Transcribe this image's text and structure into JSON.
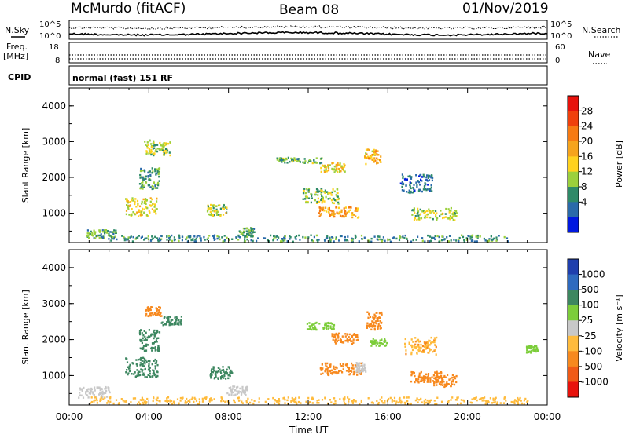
{
  "header": {
    "station": "McMurdo (fitACF)",
    "beam": "Beam 08",
    "date": "01/Nov/2019"
  },
  "strips": {
    "nsky_label": "N.Sky",
    "nsearch_label": "N.Search",
    "noise_ticks": [
      "10^5",
      "10^0"
    ],
    "freq_label_1": "Freq.",
    "freq_label_2": "[MHz]",
    "freq_ticks": [
      "18",
      "8"
    ],
    "nave_label": "Nave",
    "nave_ticks": [
      "60",
      "0"
    ],
    "cpid_label": "CPID",
    "cpid_text": "normal (fast) 151 RF"
  },
  "colorbars": {
    "power": {
      "label": "Power [dB]",
      "ticks": [
        "28",
        "24",
        "20",
        "16",
        "12",
        "8",
        "4"
      ],
      "colors": [
        "#e8120c",
        "#f0400c",
        "#f77a12",
        "#f6a41c",
        "#ffd21e",
        "#9bd03c",
        "#2e8a68",
        "#2a6aaa",
        "#0018e0"
      ]
    },
    "velocity": {
      "label": "Velocity [m s⁻¹]",
      "ticks": [
        "1000",
        "500",
        "100",
        "25",
        "-25",
        "-100",
        "-500",
        "-1000"
      ],
      "colors": [
        "#1f3fae",
        "#2e6abf",
        "#3d8760",
        "#7ccd3a",
        "#c8c8c8",
        "#ffbb3c",
        "#f7891e",
        "#f05a16",
        "#e8120c"
      ]
    }
  },
  "chart_data": [
    {
      "type": "heatmap",
      "quantity": "Power",
      "ylabel": "Slant Range [km]",
      "xlabel": "Time UT",
      "x_ticks": [
        "00:00",
        "04:00",
        "08:00",
        "12:00",
        "16:00",
        "20:00",
        "00:00"
      ],
      "y_ticks": [
        "1000",
        "2000",
        "3000",
        "4000"
      ],
      "xlim_hours": [
        0,
        24
      ],
      "ylim_km": [
        180,
        4500
      ],
      "units": "dB",
      "clim": [
        0,
        30
      ],
      "regions": [
        {
          "t": 1.6,
          "r": 440,
          "dt": 1.5,
          "dr": 260,
          "v": 10
        },
        {
          "t": 3.6,
          "r": 1200,
          "dt": 1.6,
          "dr": 520,
          "v": 14
        },
        {
          "t": 4.0,
          "r": 2000,
          "dt": 1.0,
          "dr": 600,
          "v": 9
        },
        {
          "t": 4.4,
          "r": 2850,
          "dt": 1.3,
          "dr": 420,
          "v": 12
        },
        {
          "t": 7.4,
          "r": 1100,
          "dt": 1.0,
          "dr": 320,
          "v": 13
        },
        {
          "t": 8.9,
          "r": 500,
          "dt": 0.8,
          "dr": 260,
          "v": 9
        },
        {
          "t": 11.5,
          "r": 2500,
          "dt": 2.3,
          "dr": 160,
          "v": 10
        },
        {
          "t": 13.2,
          "r": 2300,
          "dt": 1.2,
          "dr": 260,
          "v": 15
        },
        {
          "t": 12.6,
          "r": 1500,
          "dt": 1.8,
          "dr": 420,
          "v": 11
        },
        {
          "t": 13.5,
          "r": 1050,
          "dt": 2.0,
          "dr": 300,
          "v": 18
        },
        {
          "t": 15.2,
          "r": 2600,
          "dt": 0.8,
          "dr": 420,
          "v": 17
        },
        {
          "t": 18.3,
          "r": 1000,
          "dt": 2.3,
          "dr": 340,
          "v": 13
        },
        {
          "t": 17.4,
          "r": 1850,
          "dt": 1.6,
          "dr": 520,
          "v": 6
        },
        {
          "t": 12.0,
          "r": 320,
          "dt": 20,
          "dr": 180,
          "v": 8
        }
      ]
    },
    {
      "type": "heatmap",
      "quantity": "Velocity",
      "ylabel": "Slant Range [km]",
      "xlabel": "Time UT",
      "x_ticks": [
        "00:00",
        "04:00",
        "08:00",
        "12:00",
        "16:00",
        "20:00",
        "00:00"
      ],
      "y_ticks": [
        "1000",
        "2000",
        "3000",
        "4000"
      ],
      "xlim_hours": [
        0,
        24
      ],
      "ylim_km": [
        180,
        4500
      ],
      "units": "m s^-1",
      "regions": [
        {
          "t": 1.2,
          "r": 560,
          "dt": 1.6,
          "dr": 300,
          "v": 0
        },
        {
          "t": 3.6,
          "r": 1250,
          "dt": 1.6,
          "dr": 540,
          "v": 150
        },
        {
          "t": 4.0,
          "r": 2000,
          "dt": 1.0,
          "dr": 600,
          "v": 140
        },
        {
          "t": 4.2,
          "r": 2800,
          "dt": 0.8,
          "dr": 260,
          "v": -150
        },
        {
          "t": 5.1,
          "r": 2550,
          "dt": 1.0,
          "dr": 240,
          "v": 160
        },
        {
          "t": 7.6,
          "r": 1100,
          "dt": 1.1,
          "dr": 340,
          "v": 160
        },
        {
          "t": 8.4,
          "r": 600,
          "dt": 1.0,
          "dr": 260,
          "v": 10
        },
        {
          "t": 12.6,
          "r": 2400,
          "dt": 1.4,
          "dr": 200,
          "v": 70
        },
        {
          "t": 13.8,
          "r": 2050,
          "dt": 1.3,
          "dr": 300,
          "v": -140
        },
        {
          "t": 13.6,
          "r": 1200,
          "dt": 2.1,
          "dr": 340,
          "v": -250
        },
        {
          "t": 14.6,
          "r": 1250,
          "dt": 0.5,
          "dr": 280,
          "v": 5
        },
        {
          "t": 15.3,
          "r": 2550,
          "dt": 0.8,
          "dr": 500,
          "v": -160
        },
        {
          "t": 15.5,
          "r": 1950,
          "dt": 0.9,
          "dr": 200,
          "v": 70
        },
        {
          "t": 17.9,
          "r": 980,
          "dt": 1.6,
          "dr": 300,
          "v": -320
        },
        {
          "t": 18.8,
          "r": 880,
          "dt": 1.2,
          "dr": 340,
          "v": -150
        },
        {
          "t": 17.6,
          "r": 1850,
          "dt": 1.6,
          "dr": 480,
          "v": -90
        },
        {
          "t": 23.2,
          "r": 1750,
          "dt": 0.6,
          "dr": 200,
          "v": 60
        },
        {
          "t": 12.0,
          "r": 330,
          "dt": 22,
          "dr": 180,
          "v": -50
        }
      ]
    }
  ]
}
